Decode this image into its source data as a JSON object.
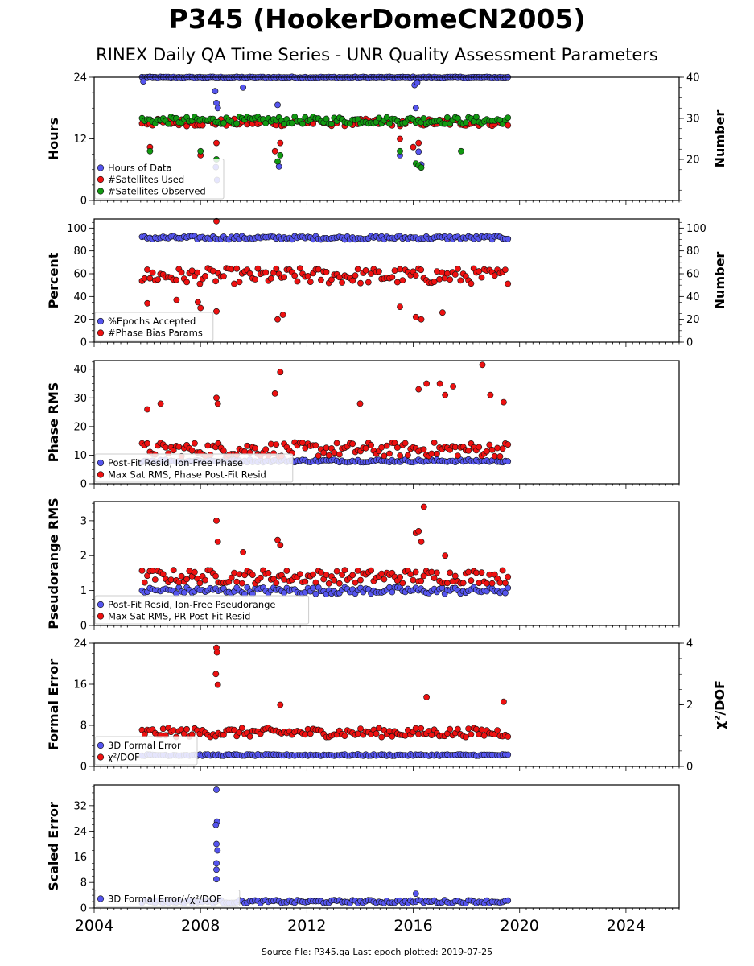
{
  "title": "P345 (HookerDomeCN2005)",
  "subtitle": "RINEX Daily QA Time Series - UNR Quality Assessment Parameters",
  "source_text": "Source file: P345.qa Last epoch plotted: 2019-07-25",
  "colors": {
    "blue": "#5555ee",
    "red": "#ee1111",
    "green": "#119911",
    "edge": "#111111"
  },
  "chart_data": [
    {
      "type": "scatter",
      "id": "hours",
      "ylabel": "Hours",
      "ylim": [
        0,
        24
      ],
      "yticks": [
        "0",
        "12",
        "24"
      ],
      "ylabel_right": "Number",
      "ylim_right": [
        10,
        40
      ],
      "yticks_right": [
        "20",
        "30",
        "40"
      ],
      "xlim": [
        2004,
        2026
      ],
      "xticks": [
        "2004",
        "2008",
        "2012",
        "2016",
        "2020",
        "2024"
      ],
      "legend_placement": "lower-left",
      "series": [
        {
          "name": "Hours of Data",
          "color": "blue",
          "axis": "left",
          "typical": 24.0,
          "range": [
            2005.8,
            2019.56
          ],
          "outliers": [
            [
              2005.85,
              23.2
            ],
            [
              2008.55,
              21.3
            ],
            [
              2008.6,
              19.0
            ],
            [
              2008.65,
              18.0
            ],
            [
              2008.62,
              4.0
            ],
            [
              2008.58,
              6.5
            ],
            [
              2009.6,
              22.0
            ],
            [
              2010.9,
              18.6
            ],
            [
              2010.95,
              6.6
            ],
            [
              2015.5,
              8.8
            ],
            [
              2016.1,
              18.0
            ],
            [
              2016.2,
              9.5
            ],
            [
              2016.3,
              7.0
            ],
            [
              2016.05,
              22.5
            ],
            [
              2016.15,
              23.0
            ]
          ]
        },
        {
          "name": "#Satellites Used",
          "color": "red",
          "axis": "right",
          "typical": 29.0,
          "range": [
            2005.8,
            2019.56
          ],
          "outliers": [
            [
              2006.1,
              23.0
            ],
            [
              2008.0,
              21.0
            ],
            [
              2008.6,
              24.0
            ],
            [
              2010.8,
              22.0
            ],
            [
              2011.0,
              24.0
            ],
            [
              2015.5,
              25.0
            ],
            [
              2016.0,
              23.0
            ],
            [
              2016.2,
              24.0
            ]
          ]
        },
        {
          "name": "#Satellites Observed",
          "color": "green",
          "axis": "right",
          "typical": 29.5,
          "range": [
            2005.8,
            2019.56
          ],
          "outliers": [
            [
              2006.1,
              22.0
            ],
            [
              2008.0,
              22.0
            ],
            [
              2008.6,
              20.0
            ],
            [
              2010.9,
              19.5
            ],
            [
              2011.0,
              21.0
            ],
            [
              2015.5,
              22.0
            ],
            [
              2016.1,
              19.0
            ],
            [
              2016.2,
              18.5
            ],
            [
              2016.3,
              18.0
            ],
            [
              2017.8,
              22.0
            ]
          ]
        }
      ]
    },
    {
      "type": "scatter",
      "id": "percent",
      "ylabel": "Percent",
      "ylim": [
        0,
        108
      ],
      "yticks": [
        "0",
        "20",
        "40",
        "60",
        "80",
        "100"
      ],
      "ylabel_right": "Number",
      "ylim_right": [
        0,
        108
      ],
      "yticks_right": [
        "0",
        "20",
        "40",
        "60",
        "80",
        "100"
      ],
      "xlim": [
        2004,
        2026
      ],
      "legend_placement": "lower-left",
      "series": [
        {
          "name": "%Epochs Accepted",
          "color": "blue",
          "axis": "left",
          "typical": 91.5,
          "range": [
            2005.8,
            2019.56
          ],
          "outliers": []
        },
        {
          "name": "#Phase Bias Params",
          "color": "red",
          "axis": "right",
          "typical": 58.0,
          "range": [
            2005.8,
            2019.56
          ],
          "outliers": [
            [
              2006.0,
              34.0
            ],
            [
              2007.1,
              37.0
            ],
            [
              2007.9,
              35.0
            ],
            [
              2008.0,
              30.0
            ],
            [
              2008.6,
              106.0
            ],
            [
              2008.6,
              27.0
            ],
            [
              2010.9,
              20.0
            ],
            [
              2011.1,
              24.0
            ],
            [
              2015.5,
              31.0
            ],
            [
              2016.1,
              22.0
            ],
            [
              2016.3,
              20.0
            ],
            [
              2017.1,
              26.0
            ]
          ]
        }
      ]
    },
    {
      "type": "scatter",
      "id": "phase",
      "ylabel": "Phase RMS",
      "ylim": [
        0,
        43
      ],
      "yticks": [
        "0",
        "10",
        "20",
        "30",
        "40"
      ],
      "xlim": [
        2004,
        2026
      ],
      "legend_placement": "lower-left",
      "series": [
        {
          "name": "Post-Fit Resid, Ion-Free Phase",
          "color": "blue",
          "axis": "left",
          "typical": 8.0,
          "range": [
            2005.8,
            2019.56
          ],
          "outliers": []
        },
        {
          "name": "Max Sat RMS, Phase Post-Fit Resid",
          "color": "red",
          "axis": "left",
          "typical": 12.0,
          "range": [
            2005.8,
            2019.56
          ],
          "outliers": [
            [
              2006.0,
              26.0
            ],
            [
              2006.5,
              28.0
            ],
            [
              2008.6,
              30.0
            ],
            [
              2008.65,
              28.0
            ],
            [
              2010.8,
              31.5
            ],
            [
              2011.0,
              39.0
            ],
            [
              2014.0,
              28.0
            ],
            [
              2016.2,
              33.0
            ],
            [
              2016.5,
              35.0
            ],
            [
              2017.0,
              35.0
            ],
            [
              2017.2,
              31.0
            ],
            [
              2017.5,
              34.0
            ],
            [
              2018.6,
              41.5
            ],
            [
              2018.9,
              31.0
            ],
            [
              2019.4,
              28.5
            ]
          ]
        }
      ]
    },
    {
      "type": "scatter",
      "id": "pseudorange",
      "ylabel": "Pseudorange RMS",
      "ylim": [
        0,
        3.55
      ],
      "yticks": [
        "0",
        "1",
        "2",
        "3"
      ],
      "xlim": [
        2004,
        2026
      ],
      "legend_placement": "lower-left",
      "series": [
        {
          "name": "Post-Fit Resid, Ion-Free Pseudorange",
          "color": "blue",
          "axis": "left",
          "typical": 1.0,
          "range": [
            2005.8,
            2019.56
          ],
          "outliers": []
        },
        {
          "name": "Max Sat RMS, PR Post-Fit Resid",
          "color": "red",
          "axis": "left",
          "typical": 1.4,
          "range": [
            2005.8,
            2019.56
          ],
          "outliers": [
            [
              2008.6,
              3.0
            ],
            [
              2008.65,
              2.4
            ],
            [
              2009.6,
              2.1
            ],
            [
              2010.9,
              2.45
            ],
            [
              2011.0,
              2.3
            ],
            [
              2016.1,
              2.65
            ],
            [
              2016.2,
              2.7
            ],
            [
              2016.3,
              2.4
            ],
            [
              2016.4,
              3.4
            ],
            [
              2017.2,
              2.0
            ]
          ]
        }
      ]
    },
    {
      "type": "scatter",
      "id": "formal",
      "ylabel": "Formal Error",
      "ylim": [
        0,
        24
      ],
      "yticks": [
        "0",
        "8",
        "16",
        "24"
      ],
      "ylabel_right": "χ²/DOF",
      "ylim_right": [
        0,
        4
      ],
      "yticks_right": [
        "0",
        "2",
        "4"
      ],
      "xlim": [
        2004,
        2026
      ],
      "legend_placement": "lower-left",
      "series": [
        {
          "name": "3D Formal Error",
          "color": "blue",
          "axis": "left",
          "typical": 2.2,
          "range": [
            2005.8,
            2019.56
          ],
          "outliers": []
        },
        {
          "name": "χ²/DOF",
          "color": "red",
          "axis": "right",
          "typical": 1.1,
          "range": [
            2005.8,
            2019.56
          ],
          "outliers": [
            [
              2008.6,
              3.85
            ],
            [
              2008.62,
              3.7
            ],
            [
              2008.58,
              3.0
            ],
            [
              2008.65,
              2.65
            ],
            [
              2011.0,
              2.0
            ],
            [
              2016.5,
              2.25
            ],
            [
              2019.4,
              2.1
            ]
          ]
        }
      ]
    },
    {
      "type": "scatter",
      "id": "scaled",
      "ylabel": "Scaled Error",
      "ylim": [
        0,
        38.5
      ],
      "yticks": [
        "0",
        "8",
        "16",
        "24",
        "32"
      ],
      "xlim": [
        2004,
        2026
      ],
      "legend_placement": "lower-left",
      "series": [
        {
          "name": "3D Formal Error/√χ²/DOF",
          "color": "blue",
          "axis": "left",
          "typical": 2.0,
          "range": [
            2005.8,
            2019.56
          ],
          "outliers": [
            [
              2008.6,
              37.0
            ],
            [
              2008.62,
              27.0
            ],
            [
              2008.58,
              26.0
            ],
            [
              2008.6,
              20.0
            ],
            [
              2008.64,
              18.0
            ],
            [
              2008.6,
              14.0
            ],
            [
              2008.6,
              12.0
            ],
            [
              2008.6,
              9.0
            ],
            [
              2016.1,
              4.5
            ]
          ]
        }
      ]
    }
  ]
}
